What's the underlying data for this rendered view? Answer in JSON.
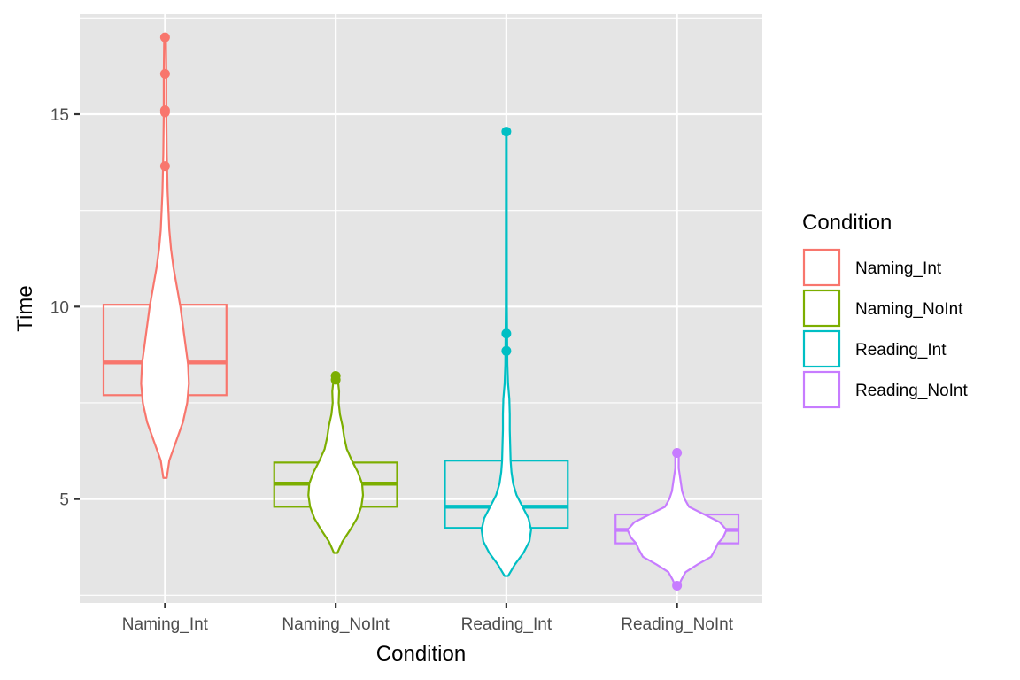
{
  "chart_data": {
    "type": "violin",
    "xlabel": "Condition",
    "ylabel": "Time",
    "ylim": [
      2.3,
      17.6
    ],
    "yticks": [
      5,
      10,
      15
    ],
    "categories": [
      "Naming_Int",
      "Naming_NoInt",
      "Reading_Int",
      "Reading_NoInt"
    ],
    "legend": {
      "title": "Condition",
      "position": "right",
      "entries": [
        "Naming_Int",
        "Naming_NoInt",
        "Reading_Int",
        "Reading_NoInt"
      ]
    },
    "grid": true,
    "colors": {
      "Naming_Int": "#F8766D",
      "Naming_NoInt": "#7CAE00",
      "Reading_Int": "#00BFC4",
      "Reading_NoInt": "#C77CFF",
      "panel_background": "#E5E5E5",
      "grid_line": "#FFFFFF"
    },
    "series": [
      {
        "name": "Naming_Int",
        "box": {
          "q1": 7.7,
          "median": 8.55,
          "q3": 10.05
        },
        "violin": {
          "y": [
            5.55,
            6.0,
            6.5,
            7.0,
            7.5,
            8.0,
            8.5,
            9.0,
            9.5,
            10.0,
            10.5,
            11.0,
            11.5,
            12.0,
            12.5,
            13.0,
            13.5,
            14.0,
            15.0,
            16.0,
            17.0
          ],
          "halfwidth": [
            0.02,
            0.05,
            0.13,
            0.21,
            0.26,
            0.28,
            0.27,
            0.24,
            0.21,
            0.18,
            0.14,
            0.1,
            0.07,
            0.05,
            0.04,
            0.03,
            0.025,
            0.02,
            0.015,
            0.015,
            0.01
          ]
        },
        "outliers": [
          17.0,
          16.05,
          15.1,
          15.05,
          13.65
        ]
      },
      {
        "name": "Naming_NoInt",
        "box": {
          "q1": 4.8,
          "median": 5.4,
          "q3": 5.95
        },
        "violin": {
          "y": [
            3.6,
            3.9,
            4.2,
            4.5,
            4.8,
            5.1,
            5.4,
            5.7,
            6.0,
            6.3,
            6.6,
            6.9,
            7.2,
            7.5,
            7.8,
            8.2
          ],
          "halfwidth": [
            0.02,
            0.08,
            0.17,
            0.25,
            0.3,
            0.32,
            0.31,
            0.26,
            0.19,
            0.13,
            0.1,
            0.08,
            0.05,
            0.035,
            0.04,
            0.02
          ]
        },
        "outliers": [
          8.2,
          8.1
        ]
      },
      {
        "name": "Reading_Int",
        "box": {
          "q1": 4.25,
          "median": 4.8,
          "q3": 6.0
        },
        "violin": {
          "y": [
            3.0,
            3.3,
            3.6,
            3.9,
            4.2,
            4.5,
            4.8,
            5.1,
            5.4,
            5.7,
            6.0,
            6.4,
            6.8,
            7.2,
            7.6,
            8.0,
            8.5,
            9.0,
            10.0,
            12.0,
            14.5
          ],
          "halfwidth": [
            0.02,
            0.1,
            0.2,
            0.27,
            0.29,
            0.26,
            0.19,
            0.12,
            0.08,
            0.06,
            0.05,
            0.045,
            0.04,
            0.04,
            0.035,
            0.02,
            0.012,
            0.01,
            0.006,
            0.005,
            0.004
          ]
        },
        "outliers": [
          14.55,
          9.3,
          8.85
        ]
      },
      {
        "name": "Reading_NoInt",
        "box": {
          "q1": 3.85,
          "median": 4.2,
          "q3": 4.6
        },
        "violin": {
          "y": [
            2.75,
            2.9,
            3.1,
            3.3,
            3.5,
            3.7,
            3.85,
            4.0,
            4.2,
            4.4,
            4.6,
            4.8,
            5.0,
            5.2,
            5.5,
            5.8,
            6.2
          ],
          "halfwidth": [
            0.02,
            0.05,
            0.1,
            0.24,
            0.4,
            0.45,
            0.48,
            0.54,
            0.58,
            0.5,
            0.32,
            0.14,
            0.09,
            0.06,
            0.04,
            0.02,
            0.02
          ]
        },
        "outliers": [
          6.2,
          2.75
        ]
      }
    ]
  }
}
